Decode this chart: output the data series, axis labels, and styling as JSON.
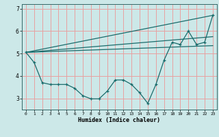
{
  "xlabel": "Humidex (Indice chaleur)",
  "bg_color": "#cce8e8",
  "grid_color": "#e8a0a0",
  "line_color": "#1a6b6b",
  "x_data": [
    0,
    1,
    2,
    3,
    4,
    5,
    6,
    7,
    8,
    9,
    10,
    11,
    12,
    13,
    14,
    15,
    16,
    17,
    18,
    19,
    20,
    21,
    22,
    23
  ],
  "y_data": [
    5.05,
    4.6,
    3.7,
    3.62,
    3.62,
    3.62,
    3.45,
    3.12,
    2.98,
    2.98,
    3.32,
    3.82,
    3.82,
    3.62,
    3.25,
    2.78,
    3.62,
    4.7,
    5.5,
    5.4,
    6.0,
    5.4,
    5.5,
    6.7
  ],
  "trend1_x": [
    0,
    23
  ],
  "trend1_y": [
    5.05,
    5.35
  ],
  "trend2_x": [
    0,
    23
  ],
  "trend2_y": [
    5.05,
    5.75
  ],
  "trend3_x": [
    0,
    23
  ],
  "trend3_y": [
    5.05,
    6.7
  ],
  "ylim": [
    2.5,
    7.2
  ],
  "xlim": [
    -0.5,
    23.5
  ],
  "yticks": [
    3,
    4,
    5,
    6,
    7
  ],
  "xticks": [
    0,
    1,
    2,
    3,
    4,
    5,
    6,
    7,
    8,
    9,
    10,
    11,
    12,
    13,
    14,
    15,
    16,
    17,
    18,
    19,
    20,
    21,
    22,
    23
  ]
}
